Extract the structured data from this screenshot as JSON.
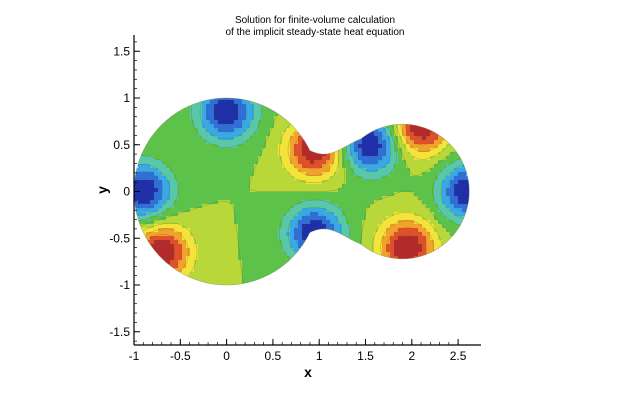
{
  "chart_data": {
    "type": "heatmap",
    "title_lines": [
      "Solution for finite-volume calculation",
      "of the implicit steady-state heat equation"
    ],
    "xlabel": "x",
    "ylabel": "y",
    "xlim": [
      -1,
      2.7
    ],
    "ylim": [
      -1.65,
      1.65
    ],
    "x_ticks": [
      -1,
      -0.5,
      0,
      0.5,
      1,
      1.5,
      2,
      2.5
    ],
    "x_tick_labels": [
      "-1",
      "-0.5",
      "0",
      "0.5",
      "1",
      "1.5",
      "2",
      "2.5"
    ],
    "y_ticks": [
      1.5,
      1,
      0.5,
      0,
      -0.5,
      -1,
      -1.5
    ],
    "y_tick_labels": [
      "1.5",
      "1",
      "0.5",
      "0",
      "-0.5",
      "-1",
      "-1.5"
    ],
    "grid": false,
    "colormap": [
      "#1f2fa8",
      "#2f6fd8",
      "#39a8e6",
      "#58c8a8",
      "#5cc24a",
      "#b8d83a",
      "#f3e43a",
      "#f4a12c",
      "#e0502a",
      "#b42a2a"
    ],
    "domain_shape": "two-lobed peanut-shaped region",
    "field_peaks": [
      {
        "x": 0.0,
        "y": 0.85,
        "sign": "negative"
      },
      {
        "x": -0.9,
        "y": 0.0,
        "sign": "negative"
      },
      {
        "x": 0.95,
        "y": 0.45,
        "sign": "positive"
      },
      {
        "x": 1.55,
        "y": 0.5,
        "sign": "negative"
      },
      {
        "x": 2.6,
        "y": 0.0,
        "sign": "negative"
      },
      {
        "x": -0.7,
        "y": -0.65,
        "sign": "positive"
      },
      {
        "x": 0.95,
        "y": -0.45,
        "sign": "negative"
      },
      {
        "x": 1.95,
        "y": -0.6,
        "sign": "positive"
      },
      {
        "x": 2.1,
        "y": 0.7,
        "sign": "positive"
      }
    ]
  }
}
